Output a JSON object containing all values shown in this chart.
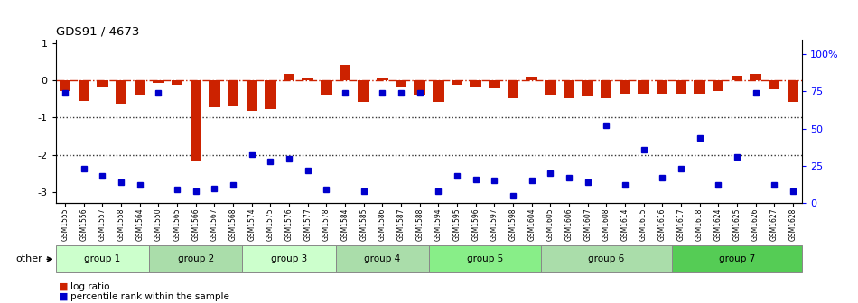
{
  "title": "GDS91 / 4673",
  "samples": [
    "GSM1555",
    "GSM1556",
    "GSM1557",
    "GSM1558",
    "GSM1564",
    "GSM1550",
    "GSM1565",
    "GSM1566",
    "GSM1567",
    "GSM1568",
    "GSM1574",
    "GSM1575",
    "GSM1576",
    "GSM1577",
    "GSM1578",
    "GSM1584",
    "GSM1585",
    "GSM1586",
    "GSM1587",
    "GSM1588",
    "GSM1594",
    "GSM1595",
    "GSM1596",
    "GSM1597",
    "GSM1598",
    "GSM1604",
    "GSM1605",
    "GSM1606",
    "GSM1607",
    "GSM1608",
    "GSM1614",
    "GSM1615",
    "GSM1616",
    "GSM1617",
    "GSM1618",
    "GSM1624",
    "GSM1625",
    "GSM1626",
    "GSM1627",
    "GSM1628"
  ],
  "log_ratio": [
    -0.28,
    -0.55,
    -0.18,
    -0.62,
    -0.38,
    -0.06,
    -0.12,
    -2.15,
    -0.72,
    -0.68,
    -0.82,
    -0.78,
    0.18,
    0.06,
    -0.38,
    0.42,
    -0.58,
    0.08,
    -0.2,
    -0.38,
    -0.58,
    -0.12,
    -0.16,
    -0.22,
    -0.48,
    0.1,
    -0.38,
    -0.48,
    -0.42,
    -0.48,
    -0.36,
    -0.36,
    -0.36,
    -0.36,
    -0.36,
    -0.28,
    0.12,
    0.17,
    -0.24,
    -0.58
  ],
  "percentile_rank": [
    74,
    23,
    18,
    14,
    12,
    74,
    9,
    8,
    10,
    12,
    33,
    28,
    30,
    22,
    9,
    74,
    8,
    74,
    74,
    74,
    8,
    18,
    16,
    15,
    5,
    15,
    20,
    17,
    14,
    52,
    12,
    36,
    17,
    23,
    44,
    12,
    31,
    74,
    12,
    8
  ],
  "groups": [
    {
      "label": "group 1",
      "start": 0,
      "end": 5,
      "color": "#ccffcc"
    },
    {
      "label": "group 2",
      "start": 5,
      "end": 10,
      "color": "#aaddaa"
    },
    {
      "label": "group 3",
      "start": 10,
      "end": 15,
      "color": "#ccffcc"
    },
    {
      "label": "group 4",
      "start": 15,
      "end": 20,
      "color": "#aaddaa"
    },
    {
      "label": "group 5",
      "start": 20,
      "end": 26,
      "color": "#88ee88"
    },
    {
      "label": "group 6",
      "start": 26,
      "end": 33,
      "color": "#aaddaa"
    },
    {
      "label": "group 7",
      "start": 33,
      "end": 40,
      "color": "#55cc55"
    }
  ],
  "ylim_left": [
    -3.3,
    1.1
  ],
  "ylim_right": [
    0,
    110
  ],
  "bar_color": "#cc2200",
  "dot_color": "#0000cc",
  "hline_color": "#cc2200",
  "dotted_line_color": "#333333"
}
